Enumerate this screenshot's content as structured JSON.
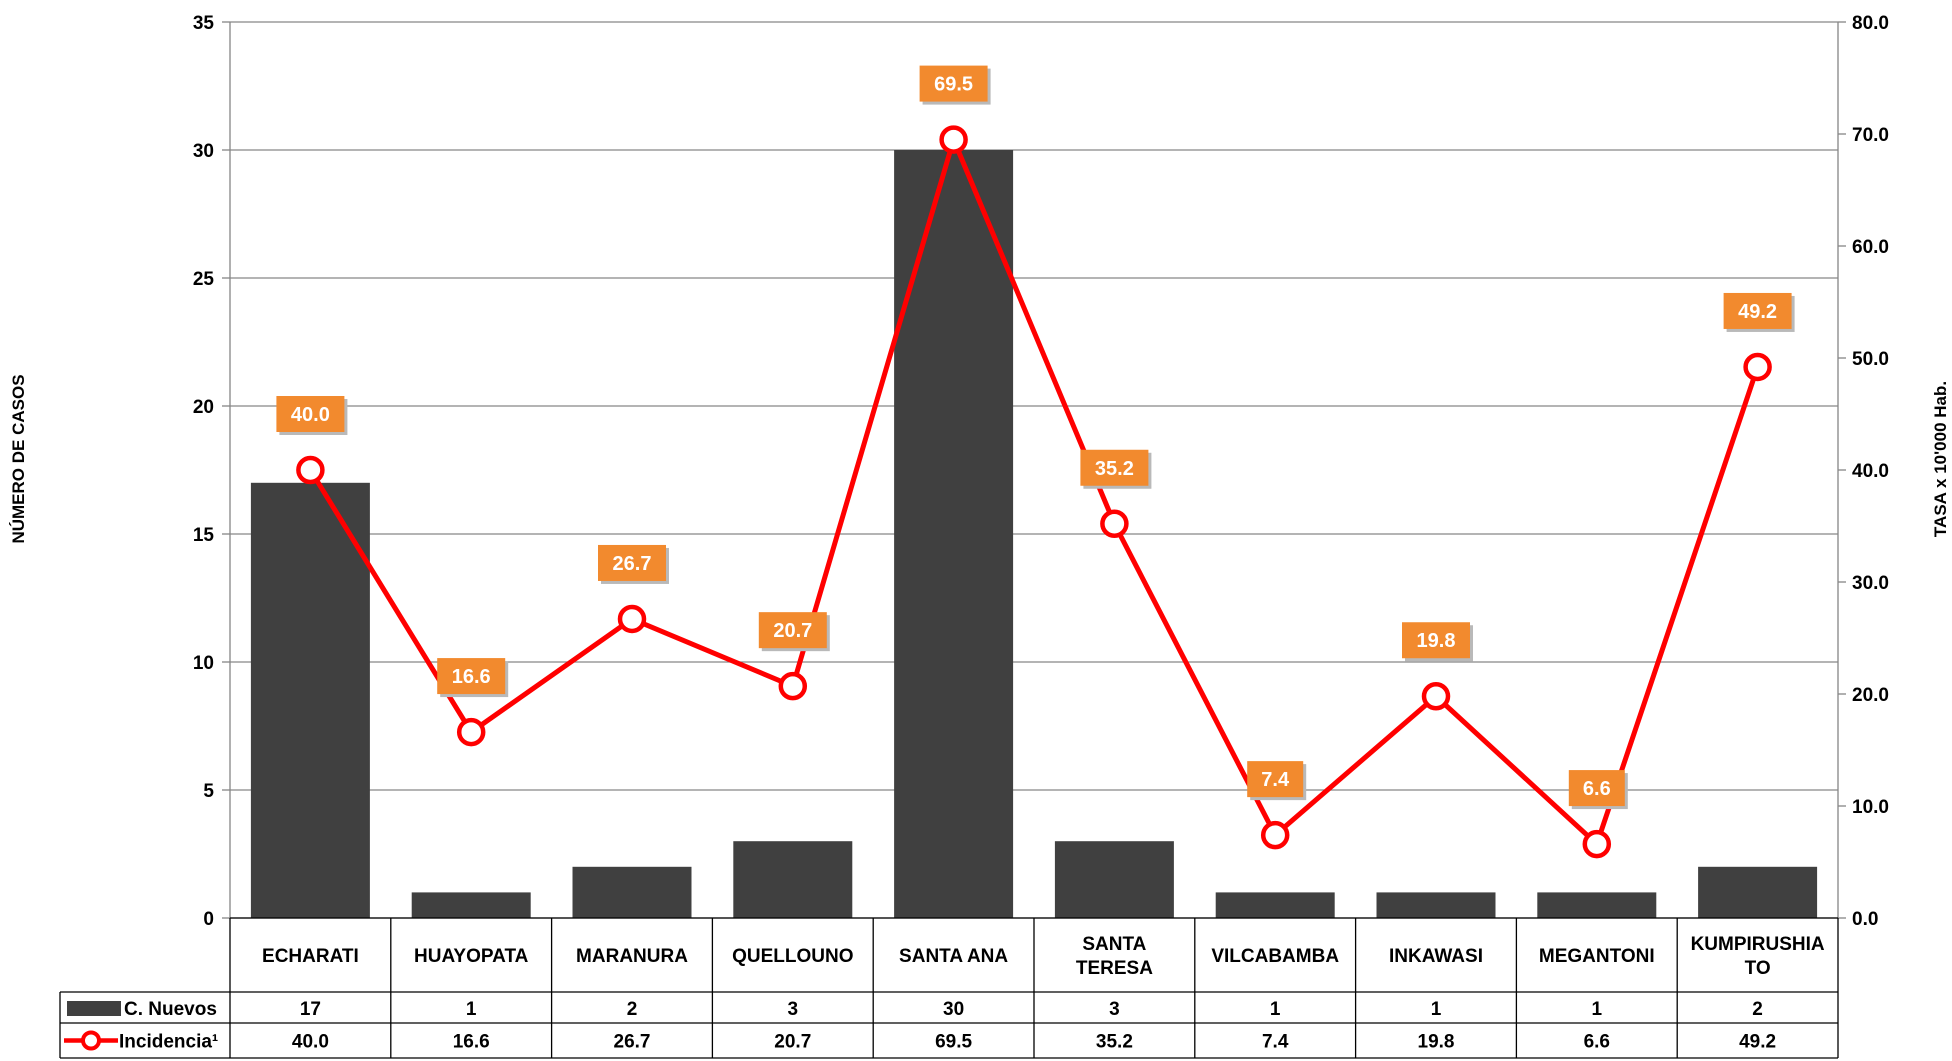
{
  "chart_data": {
    "type": "bar",
    "categories": [
      "ECHARATI",
      "HUAYOPATA",
      "MARANURA",
      "QUELLOUNO",
      "SANTA ANA",
      "SANTA TERESA",
      "VILCABAMBA",
      "INKAWASI",
      "MEGANTONI",
      "KUMPIRUSHIATO"
    ],
    "category_lines": [
      [
        "ECHARATI"
      ],
      [
        "HUAYOPATA"
      ],
      [
        "MARANURA"
      ],
      [
        "QUELLOUNO"
      ],
      [
        "SANTA ANA"
      ],
      [
        "SANTA",
        "TERESA"
      ],
      [
        "VILCABAMBA"
      ],
      [
        "INKAWASI"
      ],
      [
        "MEGANTONI"
      ],
      [
        "KUMPIRUSHIA",
        "TO"
      ]
    ],
    "series": [
      {
        "name": "C. Nuevos",
        "type": "bar",
        "axis": "left",
        "color": "#404040",
        "values": [
          17,
          1,
          2,
          3,
          30,
          3,
          1,
          1,
          1,
          2
        ]
      },
      {
        "name": "Incidencia¹",
        "type": "line",
        "axis": "right",
        "color": "#ff0000",
        "marker": "open-circle",
        "values": [
          40.0,
          16.6,
          26.7,
          20.7,
          69.5,
          35.2,
          7.4,
          19.8,
          6.6,
          49.2
        ],
        "labels": [
          "40.0",
          "16.6",
          "26.7",
          "20.7",
          "69.5",
          "35.2",
          "7.4",
          "19.8",
          "6.6",
          "49.2"
        ],
        "label_color": "#f28a2e"
      }
    ],
    "ylabel": "NÚMERO DE CASOS",
    "ylim": [
      0,
      35
    ],
    "yticks": [
      0,
      5,
      10,
      15,
      20,
      25,
      30,
      35
    ],
    "ytick_labels": [
      "0",
      "5",
      "10",
      "15",
      "20",
      "25",
      "30",
      "35"
    ],
    "y2label": "TASA x 10'000 Hab.",
    "y2lim": [
      0,
      80
    ],
    "y2ticks": [
      0,
      10,
      20,
      30,
      40,
      50,
      60,
      70,
      80
    ],
    "y2tick_labels": [
      "0.0",
      "10.0",
      "20.0",
      "30.0",
      "40.0",
      "50.0",
      "60.0",
      "70.0",
      "80.0"
    ],
    "grid": true,
    "data_table": true
  }
}
